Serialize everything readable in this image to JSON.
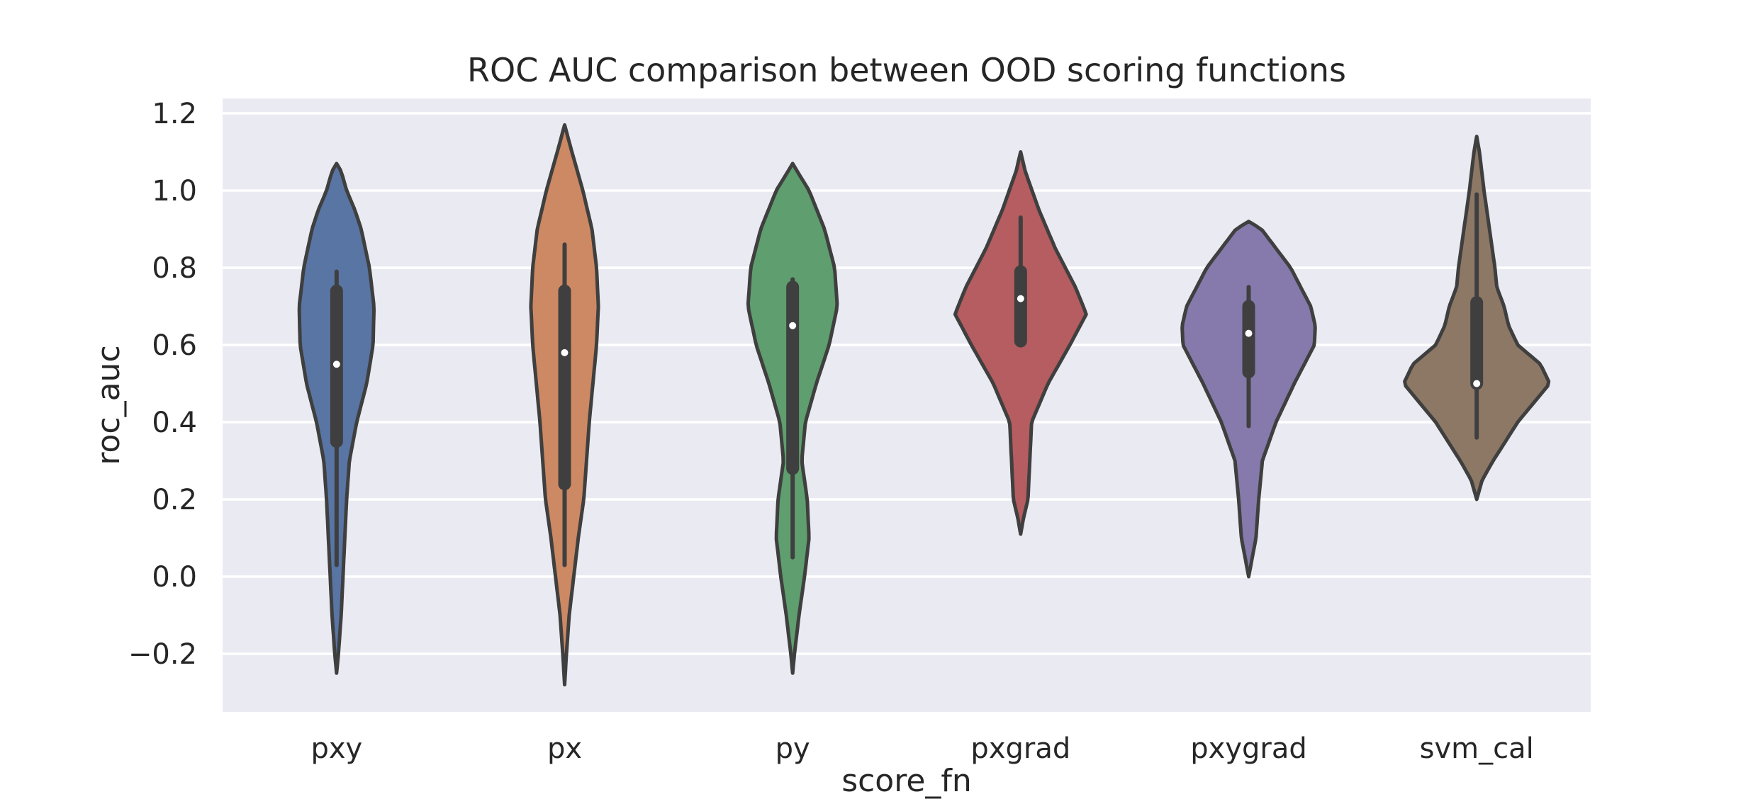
{
  "chart_data": {
    "type": "violin",
    "title": "ROC AUC comparison between OOD scoring functions",
    "xlabel": "score_fn",
    "ylabel": "roc_auc",
    "ylim": [
      -0.35,
      1.25
    ],
    "yticks": [
      -0.2,
      0.0,
      0.2,
      0.4,
      0.6,
      0.8,
      1.0,
      1.2
    ],
    "ytick_labels": [
      "−0.2",
      "0.0",
      "0.2",
      "0.4",
      "0.6",
      "0.8",
      "1.0",
      "1.2"
    ],
    "grid": true,
    "categories": [
      "pxy",
      "px",
      "py",
      "pxgrad",
      "pxygrad",
      "svm_cal"
    ],
    "series": [
      {
        "category": "pxy",
        "color": "#5875a4",
        "median": 0.55,
        "q1": 0.35,
        "q3": 0.74,
        "whisker_low": 0.03,
        "whisker_high": 0.79,
        "extent": [
          -0.25,
          1.07
        ],
        "profile": [
          [
            -0.25,
            0.0
          ],
          [
            -0.2,
            0.02
          ],
          [
            -0.1,
            0.05
          ],
          [
            0.0,
            0.07
          ],
          [
            0.1,
            0.09
          ],
          [
            0.2,
            0.11
          ],
          [
            0.3,
            0.14
          ],
          [
            0.4,
            0.22
          ],
          [
            0.5,
            0.33
          ],
          [
            0.6,
            0.4
          ],
          [
            0.7,
            0.41
          ],
          [
            0.8,
            0.36
          ],
          [
            0.9,
            0.27
          ],
          [
            0.95,
            0.2
          ],
          [
            1.0,
            0.11
          ],
          [
            1.05,
            0.05
          ],
          [
            1.07,
            0.0
          ]
        ]
      },
      {
        "category": "px",
        "color": "#cc8963",
        "median": 0.58,
        "q1": 0.24,
        "q3": 0.74,
        "whisker_low": 0.03,
        "whisker_high": 0.86,
        "extent": [
          -0.28,
          1.17
        ],
        "profile": [
          [
            -0.28,
            0.0
          ],
          [
            -0.2,
            0.02
          ],
          [
            -0.1,
            0.05
          ],
          [
            0.0,
            0.1
          ],
          [
            0.1,
            0.15
          ],
          [
            0.2,
            0.21
          ],
          [
            0.3,
            0.24
          ],
          [
            0.4,
            0.27
          ],
          [
            0.5,
            0.31
          ],
          [
            0.6,
            0.35
          ],
          [
            0.7,
            0.37
          ],
          [
            0.8,
            0.35
          ],
          [
            0.9,
            0.3
          ],
          [
            1.0,
            0.2
          ],
          [
            1.1,
            0.08
          ],
          [
            1.17,
            0.0
          ]
        ]
      },
      {
        "category": "py",
        "color": "#5f9e6e",
        "median": 0.65,
        "q1": 0.28,
        "q3": 0.75,
        "whisker_low": 0.05,
        "whisker_high": 0.77,
        "extent": [
          -0.25,
          1.07
        ],
        "profile": [
          [
            -0.25,
            0.0
          ],
          [
            -0.2,
            0.02
          ],
          [
            -0.1,
            0.07
          ],
          [
            0.0,
            0.13
          ],
          [
            0.1,
            0.18
          ],
          [
            0.2,
            0.16
          ],
          [
            0.3,
            0.1
          ],
          [
            0.4,
            0.14
          ],
          [
            0.5,
            0.26
          ],
          [
            0.6,
            0.4
          ],
          [
            0.7,
            0.49
          ],
          [
            0.8,
            0.46
          ],
          [
            0.9,
            0.35
          ],
          [
            1.0,
            0.18
          ],
          [
            1.05,
            0.05
          ],
          [
            1.07,
            0.0
          ]
        ]
      },
      {
        "category": "pxgrad",
        "color": "#b55d60",
        "median": 0.72,
        "q1": 0.61,
        "q3": 0.79,
        "whisker_low": 0.61,
        "whisker_high": 0.93,
        "extent": [
          0.11,
          1.1
        ],
        "profile": [
          [
            0.11,
            0.0
          ],
          [
            0.15,
            0.03
          ],
          [
            0.2,
            0.08
          ],
          [
            0.3,
            0.1
          ],
          [
            0.4,
            0.12
          ],
          [
            0.5,
            0.3
          ],
          [
            0.6,
            0.54
          ],
          [
            0.68,
            0.72
          ],
          [
            0.75,
            0.6
          ],
          [
            0.85,
            0.38
          ],
          [
            0.95,
            0.2
          ],
          [
            1.05,
            0.05
          ],
          [
            1.1,
            0.0
          ]
        ]
      },
      {
        "category": "pxygrad",
        "color": "#857aab",
        "median": 0.63,
        "q1": 0.53,
        "q3": 0.7,
        "whisker_low": 0.39,
        "whisker_high": 0.75,
        "extent": [
          0.0,
          0.92
        ],
        "profile": [
          [
            0.0,
            0.0
          ],
          [
            0.05,
            0.04
          ],
          [
            0.1,
            0.08
          ],
          [
            0.2,
            0.11
          ],
          [
            0.3,
            0.15
          ],
          [
            0.4,
            0.3
          ],
          [
            0.5,
            0.5
          ],
          [
            0.6,
            0.72
          ],
          [
            0.65,
            0.73
          ],
          [
            0.7,
            0.68
          ],
          [
            0.8,
            0.46
          ],
          [
            0.9,
            0.14
          ],
          [
            0.92,
            0.0
          ]
        ]
      },
      {
        "category": "svm_cal",
        "color": "#8d7866",
        "median": 0.5,
        "q1": 0.5,
        "q3": 0.71,
        "whisker_low": 0.36,
        "whisker_high": 0.99,
        "extent": [
          0.2,
          1.14
        ],
        "profile": [
          [
            0.2,
            0.0
          ],
          [
            0.25,
            0.06
          ],
          [
            0.3,
            0.18
          ],
          [
            0.4,
            0.45
          ],
          [
            0.5,
            0.8
          ],
          [
            0.55,
            0.7
          ],
          [
            0.6,
            0.45
          ],
          [
            0.65,
            0.35
          ],
          [
            0.7,
            0.3
          ],
          [
            0.75,
            0.22
          ],
          [
            0.8,
            0.2
          ],
          [
            0.9,
            0.14
          ],
          [
            1.0,
            0.08
          ],
          [
            1.1,
            0.03
          ],
          [
            1.14,
            0.0
          ]
        ]
      }
    ]
  }
}
